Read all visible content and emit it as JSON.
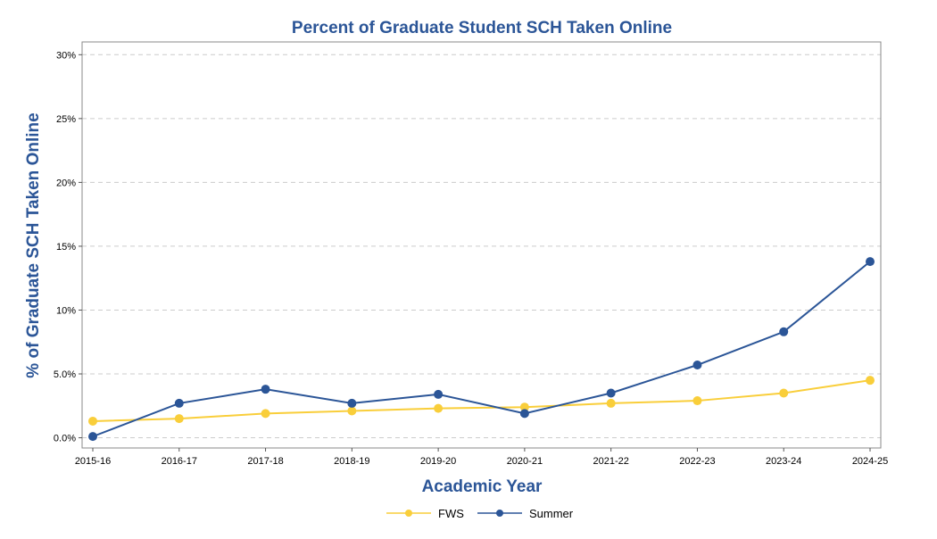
{
  "chart_data": {
    "type": "line",
    "title": "Percent of Graduate Student SCH Taken Online",
    "xlabel": "Academic Year",
    "ylabel": "% of Graduate SCH Taken Online",
    "categories": [
      "2015-16",
      "2016-17",
      "2017-18",
      "2018-19",
      "2019-20",
      "2020-21",
      "2021-22",
      "2022-23",
      "2023-24",
      "2024-25"
    ],
    "yticks": [
      0,
      5,
      10,
      15,
      20,
      25,
      30
    ],
    "ytick_labels": [
      "0.0%",
      "5.0%",
      "10%",
      "15%",
      "20%",
      "25%",
      "30%"
    ],
    "ylim": [
      -0.8,
      31
    ],
    "grid": true,
    "legend_position": "bottom",
    "series": [
      {
        "name": "FWS",
        "color": "#f9ce3a",
        "values": [
          1.3,
          1.5,
          1.9,
          2.1,
          2.3,
          2.4,
          2.7,
          2.9,
          3.5,
          4.5
        ]
      },
      {
        "name": "Summer",
        "color": "#2b5597",
        "values": [
          0.1,
          2.7,
          3.8,
          2.7,
          3.4,
          1.9,
          3.5,
          5.7,
          8.3,
          13.8
        ]
      }
    ]
  }
}
